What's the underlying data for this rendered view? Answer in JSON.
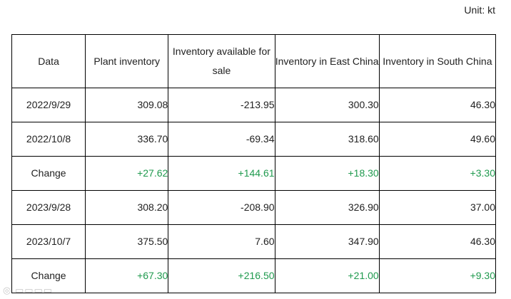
{
  "unit_label": "Unit: kt",
  "table": {
    "headers": [
      "Data",
      "Plant inventory",
      "Inventory available for sale",
      "Inventory in East China",
      "Inventory in South China"
    ],
    "rows": [
      {
        "type": "date",
        "cells": [
          "2022/9/29",
          "309.08",
          "-213.95",
          "300.30",
          "46.30"
        ]
      },
      {
        "type": "date",
        "cells": [
          "2022/10/8",
          "336.70",
          "-69.34",
          "318.60",
          "49.60"
        ]
      },
      {
        "type": "change",
        "cells": [
          "Change",
          "+27.62",
          "+144.61",
          "+18.30",
          "+3.30"
        ]
      },
      {
        "type": "date",
        "cells": [
          "2023/9/28",
          "308.20",
          "-208.90",
          "326.90",
          "37.00"
        ]
      },
      {
        "type": "date",
        "cells": [
          "2023/10/7",
          "375.50",
          "7.60",
          "347.90",
          "46.30"
        ]
      },
      {
        "type": "change",
        "cells": [
          "Change",
          "+67.30",
          "+216.50",
          "+21.00",
          "+9.30"
        ]
      }
    ]
  },
  "colors": {
    "positive_change": "#1f9a4e",
    "border": "#000000",
    "text": "#222222"
  }
}
